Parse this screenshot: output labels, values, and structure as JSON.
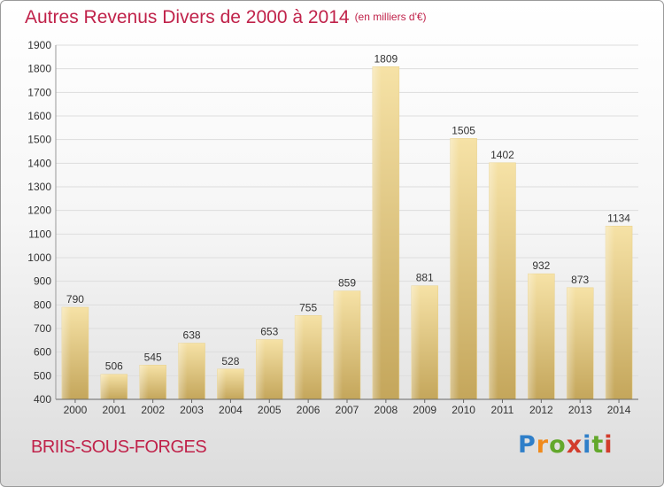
{
  "header": {
    "title": "Autres Revenus Divers de 2000 à 2014",
    "unit": "(en milliers d'€)"
  },
  "footer": {
    "place": "BRIIS-SOUS-FORGES",
    "brand": "Proxiti"
  },
  "colors": {
    "accent": "#c0224a",
    "bar_light": "#f4dc9c",
    "bar_dark": "#c2a458"
  },
  "chart_data": {
    "type": "bar",
    "title": "Autres Revenus Divers de 2000 à 2014",
    "subtitle": "(en milliers d'€)",
    "xlabel": "",
    "ylabel": "",
    "categories": [
      "2000",
      "2001",
      "2002",
      "2003",
      "2004",
      "2005",
      "2006",
      "2007",
      "2008",
      "2009",
      "2010",
      "2011",
      "2012",
      "2013",
      "2014"
    ],
    "values": [
      790,
      506,
      545,
      638,
      528,
      653,
      755,
      859,
      1809,
      881,
      1505,
      1402,
      932,
      873,
      1134
    ],
    "ylim": [
      400,
      1900
    ],
    "yticks": [
      400,
      500,
      600,
      700,
      800,
      900,
      1000,
      1100,
      1200,
      1300,
      1400,
      1500,
      1600,
      1700,
      1800,
      1900
    ],
    "grid": true,
    "legend": "none"
  }
}
